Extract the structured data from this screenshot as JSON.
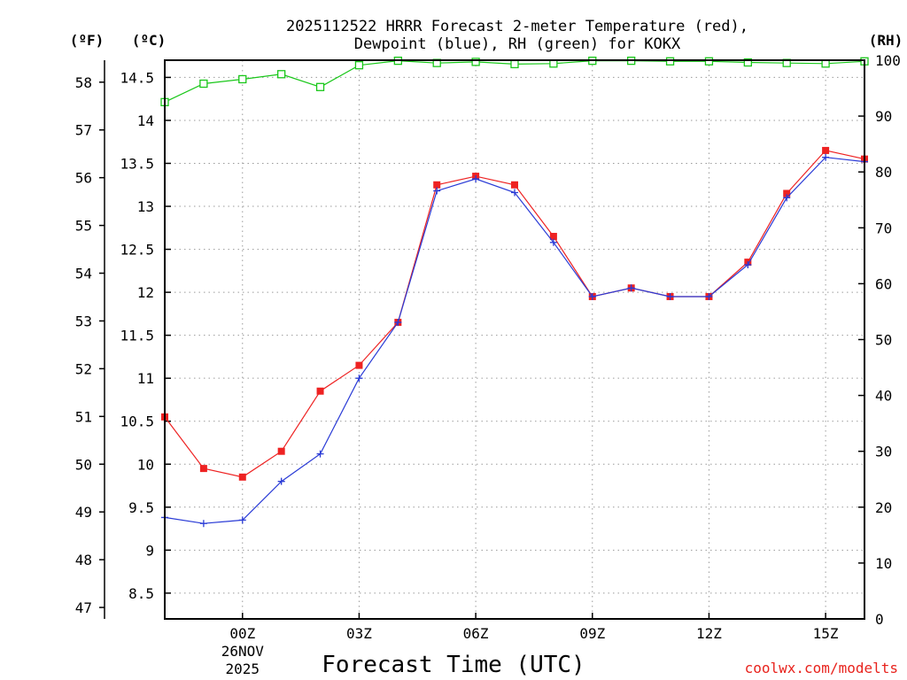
{
  "chart_data": {
    "type": "line",
    "title_line1": "2025112522 HRRR Forecast 2-meter Temperature (red),",
    "title_line2": "Dewpoint (blue), RH (green) for KOKX",
    "xlabel": "Forecast Time (UTC)",
    "credit": "coolwx.com/modelts",
    "units": {
      "fahrenheit": "(ºF)",
      "celsius": "(ºC)",
      "rh": "(RH)"
    },
    "x_hours": [
      -2,
      -1,
      0,
      1,
      2,
      3,
      4,
      5,
      6,
      7,
      8,
      9,
      10,
      11,
      12,
      13,
      14,
      15,
      16
    ],
    "x_range": [
      -2,
      16
    ],
    "x_ticks": [
      {
        "hour": 0,
        "label": "00Z",
        "date_line1": "26NOV",
        "date_line2": "2025"
      },
      {
        "hour": 3,
        "label": "03Z"
      },
      {
        "hour": 6,
        "label": "06Z"
      },
      {
        "hour": 9,
        "label": "09Z"
      },
      {
        "hour": 12,
        "label": "12Z"
      },
      {
        "hour": 15,
        "label": "15Z"
      }
    ],
    "celsius_axis": {
      "range": [
        8.2,
        14.7
      ],
      "ticks": [
        8.5,
        9,
        9.5,
        10,
        10.5,
        11,
        11.5,
        12,
        12.5,
        13,
        13.5,
        14,
        14.5
      ],
      "tick_labels": [
        "8.5",
        "9",
        "9.5",
        "10",
        "10.5",
        "11",
        "11.5",
        "12",
        "12.5",
        "13",
        "13.5",
        "14",
        "14.5"
      ]
    },
    "fahrenheit_axis": {
      "ticks": [
        47,
        48,
        49,
        50,
        51,
        52,
        53,
        54,
        55,
        56,
        57,
        58
      ],
      "tick_labels": [
        "47",
        "48",
        "49",
        "50",
        "51",
        "52",
        "53",
        "54",
        "55",
        "56",
        "57",
        "58"
      ]
    },
    "rh_axis": {
      "range": [
        0,
        100
      ],
      "ticks": [
        0,
        10,
        20,
        30,
        40,
        50,
        60,
        70,
        80,
        90,
        100
      ],
      "tick_labels": [
        "0",
        "10",
        "20",
        "30",
        "40",
        "50",
        "60",
        "70",
        "80",
        "90",
        "100"
      ]
    },
    "series": [
      {
        "name": "Temperature",
        "units": "C",
        "color": "#ee2222",
        "marker": "filled-square",
        "values": [
          10.55,
          9.95,
          9.85,
          10.15,
          10.85,
          11.15,
          11.65,
          13.25,
          13.35,
          13.25,
          12.65,
          11.95,
          12.05,
          11.95,
          11.95,
          12.35,
          13.15,
          13.65,
          13.55
        ]
      },
      {
        "name": "Dewpoint",
        "units": "C",
        "color": "#2a3bd6",
        "marker": "plus",
        "values": [
          9.38,
          9.31,
          9.35,
          9.8,
          10.12,
          11.0,
          11.65,
          13.18,
          13.32,
          13.16,
          12.58,
          11.95,
          12.05,
          11.95,
          11.95,
          12.32,
          13.1,
          13.57,
          13.52
        ]
      },
      {
        "name": "RH",
        "units": "%",
        "color": "#19c719",
        "marker": "open-square",
        "values": [
          92.5,
          95.8,
          96.6,
          97.5,
          95.2,
          99.1,
          99.9,
          99.5,
          99.7,
          99.3,
          99.4,
          99.9,
          99.9,
          99.8,
          99.8,
          99.6,
          99.5,
          99.4,
          99.8
        ]
      }
    ]
  }
}
